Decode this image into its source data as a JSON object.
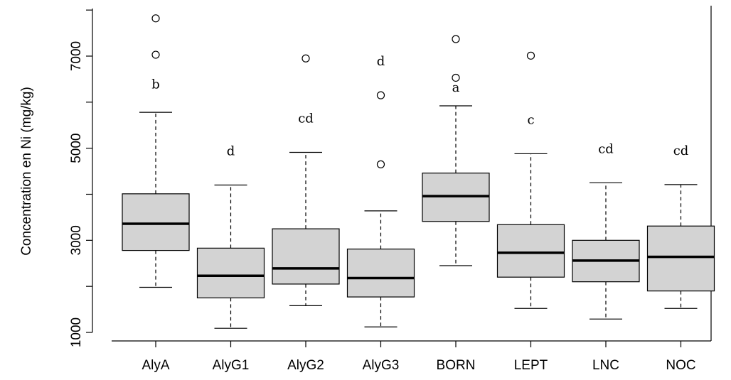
{
  "chart_data": {
    "type": "box",
    "title": "",
    "xlabel": "",
    "ylabel": "Concentration en Ni (mg/kg)",
    "ylim": [
      800,
      8100
    ],
    "y_ticks": [
      1000,
      3000,
      5000,
      7000
    ],
    "grid": false,
    "categories": [
      "AlyA",
      "AlyG1",
      "AlyG2",
      "AlyG3",
      "BORN",
      "LEPT",
      "LNC",
      "NOC"
    ],
    "boxes": [
      {
        "category": "AlyA",
        "whisker_low": 1980,
        "q1": 2780,
        "median": 3360,
        "q3": 4010,
        "whisker_high": 5780,
        "outliers": [
          7030,
          7820
        ],
        "letter": "b"
      },
      {
        "category": "AlyG1",
        "whisker_low": 1090,
        "q1": 1750,
        "median": 2230,
        "q3": 2830,
        "whisker_high": 4200,
        "outliers": [],
        "letter": "d"
      },
      {
        "category": "AlyG2",
        "whisker_low": 1580,
        "q1": 2050,
        "median": 2390,
        "q3": 3250,
        "whisker_high": 4910,
        "outliers": [
          6950
        ],
        "letter": "cd"
      },
      {
        "category": "AlyG3",
        "whisker_low": 1120,
        "q1": 1770,
        "median": 2180,
        "q3": 2810,
        "whisker_high": 3640,
        "outliers": [
          4650,
          6150
        ],
        "letter": "d"
      },
      {
        "category": "BORN",
        "whisker_low": 2450,
        "q1": 3410,
        "median": 3960,
        "q3": 4460,
        "whisker_high": 5920,
        "outliers": [
          6530,
          7370
        ],
        "letter": "a"
      },
      {
        "category": "LEPT",
        "whisker_low": 1520,
        "q1": 2200,
        "median": 2730,
        "q3": 3340,
        "whisker_high": 4880,
        "outliers": [
          7010
        ],
        "letter": "c"
      },
      {
        "category": "LNC",
        "whisker_low": 1290,
        "q1": 2100,
        "median": 2560,
        "q3": 3000,
        "whisker_high": 4250,
        "outliers": [],
        "letter": "cd"
      },
      {
        "category": "NOC",
        "whisker_low": 1520,
        "q1": 1900,
        "median": 2640,
        "q3": 3310,
        "whisker_high": 4210,
        "outliers": [],
        "letter": "cd"
      }
    ]
  }
}
